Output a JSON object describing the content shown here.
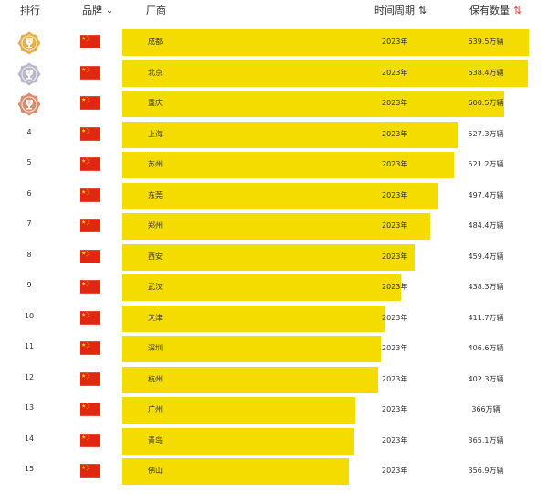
{
  "header": {
    "rank_label": "排行",
    "brand_label": "品牌",
    "maker_label": "厂商",
    "period_label": "时间周期",
    "count_label": "保有数量"
  },
  "colors": {
    "bar": "#f4dc00",
    "sort_active": "#e0403a",
    "flag_red": "#de2910",
    "flag_star": "#ffde00"
  },
  "icons": {
    "brand_filter": "chevron-down-icon",
    "period_sort": "sort-arrows-icon",
    "count_sort": "sort-arrows-active-icon",
    "rank_1_3": "trophy-medal-icon",
    "brand": "china-flag-icon"
  },
  "chart_data": {
    "type": "bar",
    "orientation": "horizontal",
    "unit": "万辆",
    "period": "2023年",
    "categories": [
      "成都",
      "北京",
      "重庆",
      "上海",
      "苏州",
      "东莞",
      "郑州",
      "西安",
      "武汉",
      "天津",
      "深圳",
      "杭州",
      "广州",
      "青岛",
      "佛山"
    ],
    "values": [
      639.5,
      638.4,
      600.5,
      527.3,
      521.2,
      497.4,
      484.4,
      459.4,
      438.3,
      411.7,
      406.6,
      402.3,
      366,
      365.1,
      356.9
    ],
    "value_labels": [
      "639.5万辆",
      "638.4万辆",
      "600.5万辆",
      "527.3万辆",
      "521.2万辆",
      "497.4万辆",
      "484.4万辆",
      "459.4万辆",
      "438.3万辆",
      "411.7万辆",
      "406.6万辆",
      "402.3万辆",
      "366万辆",
      "365.1万辆",
      "356.9万辆"
    ],
    "ranks": [
      "1",
      "2",
      "3",
      "4",
      "5",
      "6",
      "7",
      "8",
      "9",
      "10",
      "11",
      "12",
      "13",
      "14",
      "15"
    ],
    "medal_colors": [
      "#e8b04a",
      "#b9b9c9",
      "#d98c6f"
    ]
  }
}
